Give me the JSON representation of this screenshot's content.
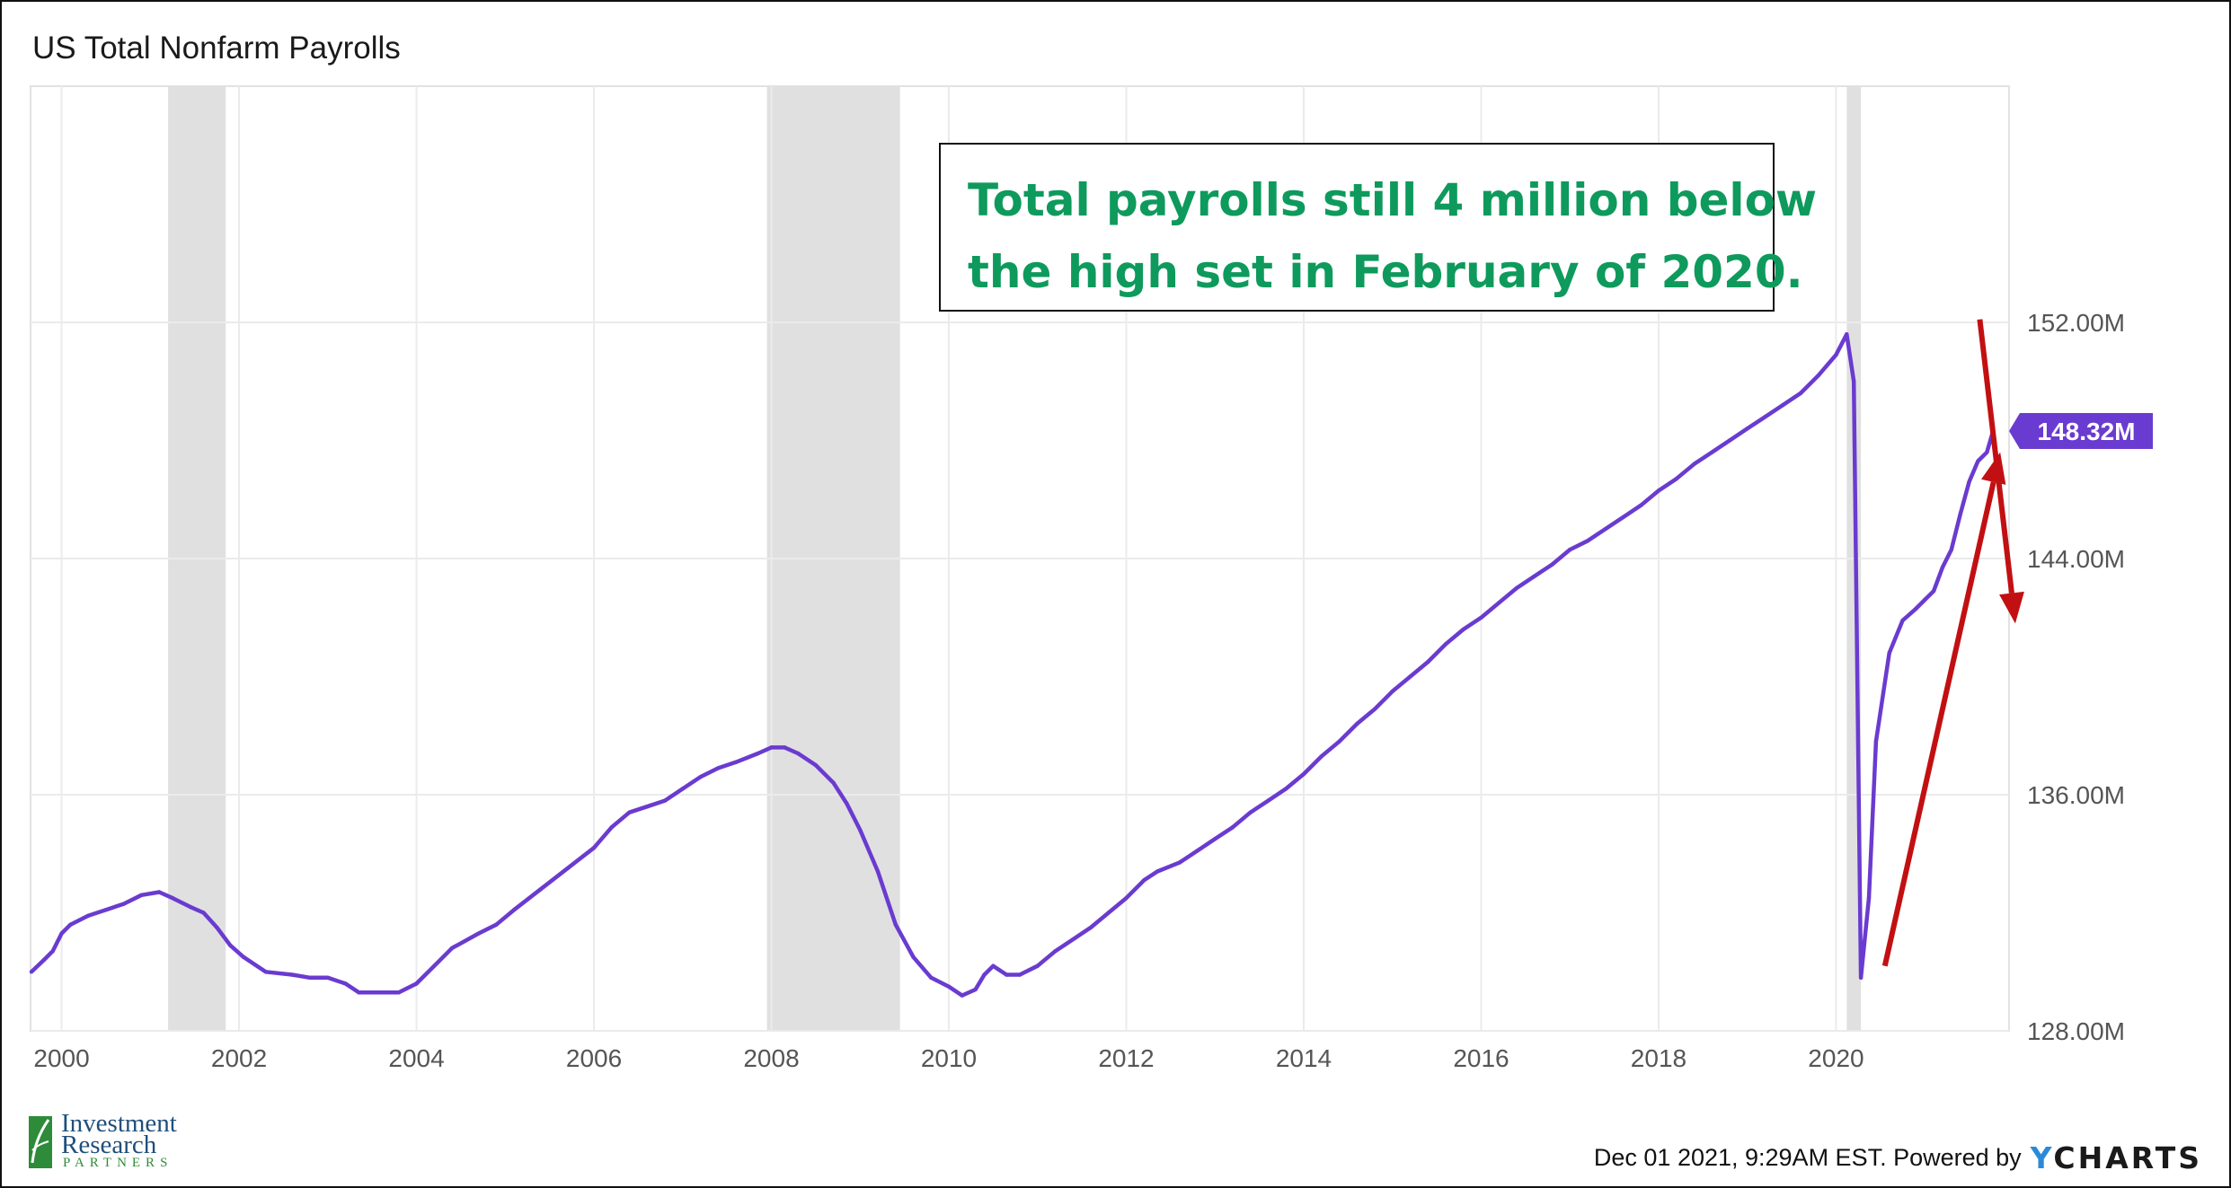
{
  "title": "US Total Nonfarm Payrolls",
  "annotation": {
    "line1": "Total payrolls still 4 million below",
    "line2": "the high set in February of 2020.",
    "text_color": "#0e9a5c"
  },
  "footer": {
    "timestamp": "Dec 01 2021, 9:29AM EST. Powered by",
    "brand_first": "Y",
    "brand_rest": "CHARTS"
  },
  "logo": {
    "line1": "Investment",
    "line2": "Research",
    "line3": "PARTNERS"
  },
  "chart_data": {
    "type": "line",
    "y_axis_side": "right",
    "ylim": [
      128,
      160
    ],
    "x_range": [
      1999.65,
      2021.95
    ],
    "x_ticks": [
      "2000",
      "2002",
      "2004",
      "2006",
      "2008",
      "2010",
      "2012",
      "2014",
      "2016",
      "2018",
      "2020"
    ],
    "y_ticks": [
      "128.00M",
      "136.00M",
      "144.00M",
      "152.00M"
    ],
    "grid": true,
    "series": [
      {
        "color": "#6a3bd0",
        "unit": "M",
        "last_value_label": "148.32M",
        "points": [
          [
            1999.66,
            130.0
          ],
          [
            1999.8,
            130.4
          ],
          [
            1999.9,
            130.7
          ],
          [
            2000.0,
            131.3
          ],
          [
            2000.1,
            131.6
          ],
          [
            2000.3,
            131.9
          ],
          [
            2000.5,
            132.1
          ],
          [
            2000.7,
            132.3
          ],
          [
            2000.9,
            132.6
          ],
          [
            2001.1,
            132.7
          ],
          [
            2001.25,
            132.5
          ],
          [
            2001.45,
            132.2
          ],
          [
            2001.6,
            132.0
          ],
          [
            2001.75,
            131.5
          ],
          [
            2001.9,
            130.9
          ],
          [
            2002.05,
            130.5
          ],
          [
            2002.3,
            130.0
          ],
          [
            2002.6,
            129.9
          ],
          [
            2002.8,
            129.8
          ],
          [
            2003.0,
            129.8
          ],
          [
            2003.2,
            129.6
          ],
          [
            2003.35,
            129.3
          ],
          [
            2003.6,
            129.3
          ],
          [
            2003.8,
            129.3
          ],
          [
            2004.0,
            129.6
          ],
          [
            2004.2,
            130.2
          ],
          [
            2004.4,
            130.8
          ],
          [
            2004.7,
            131.3
          ],
          [
            2004.9,
            131.6
          ],
          [
            2005.1,
            132.1
          ],
          [
            2005.4,
            132.8
          ],
          [
            2005.7,
            133.5
          ],
          [
            2006.0,
            134.2
          ],
          [
            2006.2,
            134.9
          ],
          [
            2006.4,
            135.4
          ],
          [
            2006.6,
            135.6
          ],
          [
            2006.8,
            135.8
          ],
          [
            2007.0,
            136.2
          ],
          [
            2007.2,
            136.6
          ],
          [
            2007.4,
            136.9
          ],
          [
            2007.6,
            137.1
          ],
          [
            2007.85,
            137.4
          ],
          [
            2008.0,
            137.6
          ],
          [
            2008.15,
            137.6
          ],
          [
            2008.3,
            137.4
          ],
          [
            2008.5,
            137.0
          ],
          [
            2008.7,
            136.4
          ],
          [
            2008.85,
            135.7
          ],
          [
            2009.0,
            134.8
          ],
          [
            2009.2,
            133.4
          ],
          [
            2009.4,
            131.6
          ],
          [
            2009.6,
            130.5
          ],
          [
            2009.8,
            129.8
          ],
          [
            2010.0,
            129.5
          ],
          [
            2010.15,
            129.2
          ],
          [
            2010.3,
            129.4
          ],
          [
            2010.4,
            129.9
          ],
          [
            2010.5,
            130.2
          ],
          [
            2010.65,
            129.9
          ],
          [
            2010.8,
            129.9
          ],
          [
            2011.0,
            130.2
          ],
          [
            2011.2,
            130.7
          ],
          [
            2011.4,
            131.1
          ],
          [
            2011.6,
            131.5
          ],
          [
            2011.8,
            132.0
          ],
          [
            2012.0,
            132.5
          ],
          [
            2012.2,
            133.1
          ],
          [
            2012.35,
            133.4
          ],
          [
            2012.6,
            133.7
          ],
          [
            2012.8,
            134.1
          ],
          [
            2013.0,
            134.5
          ],
          [
            2013.2,
            134.9
          ],
          [
            2013.4,
            135.4
          ],
          [
            2013.6,
            135.8
          ],
          [
            2013.8,
            136.2
          ],
          [
            2014.0,
            136.7
          ],
          [
            2014.2,
            137.3
          ],
          [
            2014.4,
            137.8
          ],
          [
            2014.6,
            138.4
          ],
          [
            2014.8,
            138.9
          ],
          [
            2015.0,
            139.5
          ],
          [
            2015.2,
            140.0
          ],
          [
            2015.4,
            140.5
          ],
          [
            2015.6,
            141.1
          ],
          [
            2015.8,
            141.6
          ],
          [
            2016.0,
            142.0
          ],
          [
            2016.2,
            142.5
          ],
          [
            2016.4,
            143.0
          ],
          [
            2016.6,
            143.4
          ],
          [
            2016.8,
            143.8
          ],
          [
            2017.0,
            144.3
          ],
          [
            2017.2,
            144.6
          ],
          [
            2017.4,
            145.0
          ],
          [
            2017.6,
            145.4
          ],
          [
            2017.8,
            145.8
          ],
          [
            2018.0,
            146.3
          ],
          [
            2018.2,
            146.7
          ],
          [
            2018.4,
            147.2
          ],
          [
            2018.6,
            147.6
          ],
          [
            2018.8,
            148.0
          ],
          [
            2019.0,
            148.4
          ],
          [
            2019.2,
            148.8
          ],
          [
            2019.4,
            149.2
          ],
          [
            2019.6,
            149.6
          ],
          [
            2019.8,
            150.2
          ],
          [
            2020.0,
            150.9
          ],
          [
            2020.12,
            151.6
          ],
          [
            2020.2,
            150.0
          ],
          [
            2020.28,
            129.8
          ],
          [
            2020.37,
            132.5
          ],
          [
            2020.45,
            137.8
          ],
          [
            2020.6,
            140.8
          ],
          [
            2020.75,
            141.9
          ],
          [
            2020.9,
            142.3
          ],
          [
            2021.0,
            142.6
          ],
          [
            2021.1,
            142.9
          ],
          [
            2021.2,
            143.7
          ],
          [
            2021.3,
            144.3
          ],
          [
            2021.4,
            145.5
          ],
          [
            2021.5,
            146.6
          ],
          [
            2021.6,
            147.3
          ],
          [
            2021.7,
            147.6
          ],
          [
            2021.77,
            148.32
          ]
        ]
      }
    ],
    "recessions": [
      [
        2001.2,
        2001.85
      ],
      [
        2007.95,
        2009.45
      ],
      [
        2020.12,
        2020.28
      ]
    ],
    "annotation_arrows": [
      {
        "color": "#c21012",
        "from": [
          2021.62,
          152.1
        ],
        "to": [
          2022.02,
          141.8
        ]
      },
      {
        "color": "#c21012",
        "from": [
          2020.55,
          130.2
        ],
        "to": [
          2021.85,
          147.6
        ]
      }
    ]
  }
}
